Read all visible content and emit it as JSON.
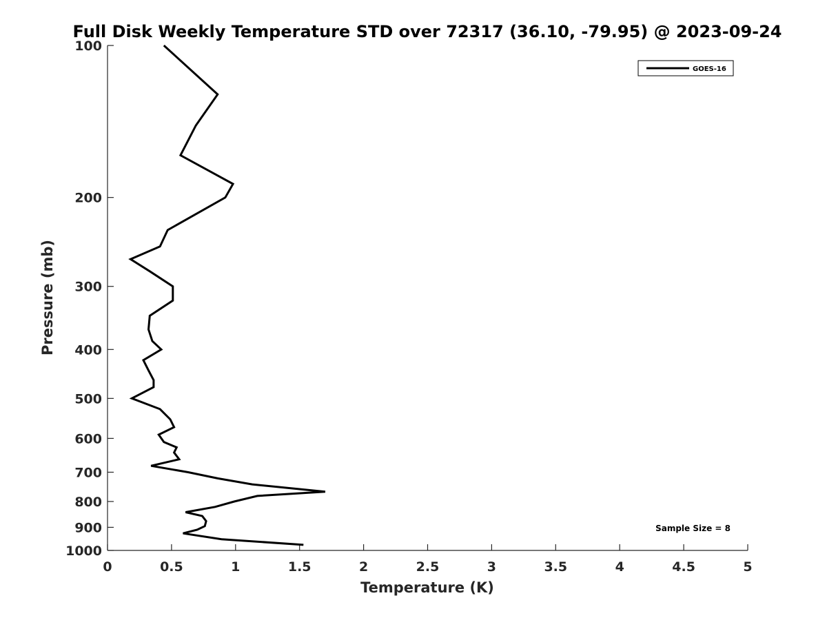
{
  "chart_data": {
    "type": "line",
    "title": "Full Disk Weekly Temperature STD over 72317 (36.10, -79.95) @ 2023-09-24",
    "xlabel": "Temperature (K)",
    "ylabel": "Pressure (mb)",
    "xlim": [
      0,
      5
    ],
    "ylim": [
      1000,
      100
    ],
    "y_scale": "log",
    "x_ticks": [
      0,
      0.5,
      1,
      1.5,
      2,
      2.5,
      3,
      3.5,
      4,
      4.5,
      5
    ],
    "x_tick_labels": [
      "0",
      "0.5",
      "1",
      "1.5",
      "2",
      "2.5",
      "3",
      "3.5",
      "4",
      "4.5",
      "5"
    ],
    "y_ticks": [
      100,
      200,
      300,
      400,
      500,
      600,
      700,
      800,
      900,
      1000
    ],
    "y_tick_labels": [
      "100",
      "200",
      "300",
      "400",
      "500",
      "600",
      "700",
      "800",
      "900",
      "1000"
    ],
    "grid": false,
    "legend_position": "top-right",
    "annotation": "Sample Size = 8",
    "series": [
      {
        "name": "GOES-16",
        "color": "#000000",
        "points": [
          [
            0.44,
            100
          ],
          [
            0.86,
            125
          ],
          [
            0.69,
            144
          ],
          [
            0.57,
            165
          ],
          [
            0.98,
            188
          ],
          [
            0.92,
            200
          ],
          [
            0.47,
            232
          ],
          [
            0.41,
            250
          ],
          [
            0.18,
            265
          ],
          [
            0.33,
            280
          ],
          [
            0.51,
            300
          ],
          [
            0.51,
            320
          ],
          [
            0.33,
            343
          ],
          [
            0.32,
            365
          ],
          [
            0.35,
            385
          ],
          [
            0.42,
            400
          ],
          [
            0.28,
            420
          ],
          [
            0.32,
            440
          ],
          [
            0.36,
            460
          ],
          [
            0.36,
            475
          ],
          [
            0.19,
            500
          ],
          [
            0.41,
            525
          ],
          [
            0.49,
            550
          ],
          [
            0.52,
            570
          ],
          [
            0.4,
            590
          ],
          [
            0.44,
            610
          ],
          [
            0.54,
            625
          ],
          [
            0.52,
            640
          ],
          [
            0.56,
            660
          ],
          [
            0.34,
            680
          ],
          [
            0.63,
            700
          ],
          [
            0.86,
            720
          ],
          [
            1.13,
            740
          ],
          [
            1.7,
            765
          ],
          [
            1.17,
            780
          ],
          [
            0.99,
            800
          ],
          [
            0.84,
            820
          ],
          [
            0.61,
            840
          ],
          [
            0.74,
            855
          ],
          [
            0.77,
            875
          ],
          [
            0.76,
            895
          ],
          [
            0.7,
            910
          ],
          [
            0.59,
            925
          ],
          [
            0.89,
            950
          ],
          [
            1.53,
            975
          ]
        ]
      }
    ]
  }
}
